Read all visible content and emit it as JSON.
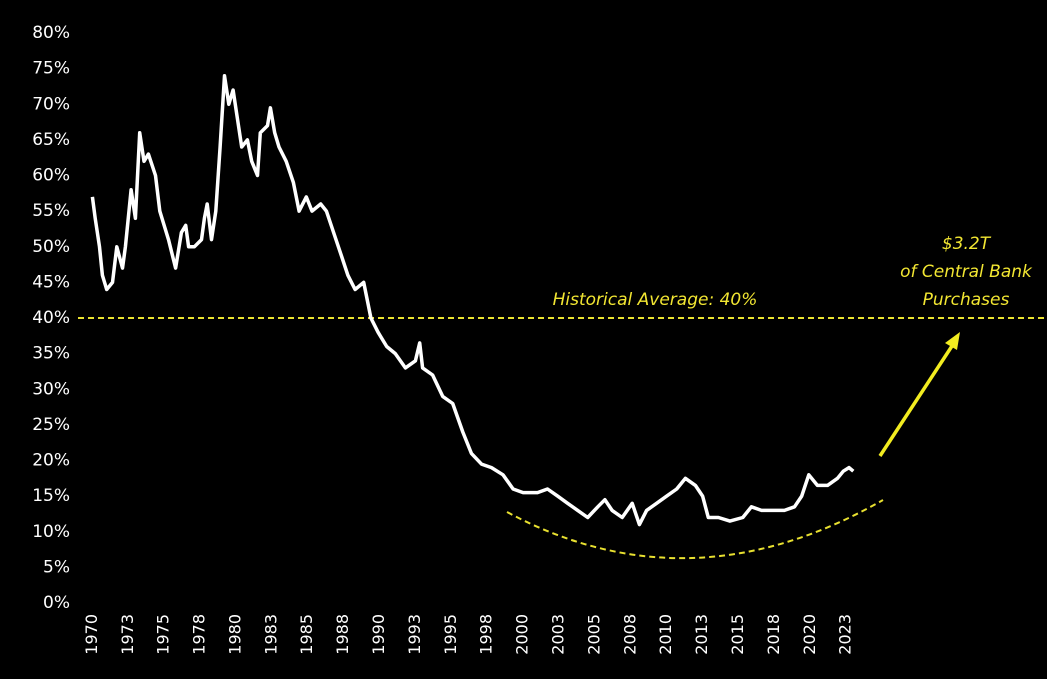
{
  "chart_data": {
    "type": "line",
    "color": "#ffffff",
    "x": [
      1970.0,
      1970.2,
      1970.5,
      1970.7,
      1971.0,
      1971.4,
      1971.7,
      1972.1,
      1972.3,
      1972.7,
      1973.0,
      1973.3,
      1973.6,
      1973.9,
      1974.4,
      1974.7,
      1975.3,
      1975.8,
      1976.2,
      1976.5,
      1976.7,
      1977.1,
      1977.6,
      1977.8,
      1978.0,
      1978.3,
      1978.6,
      1978.9,
      1979.2,
      1979.5,
      1979.8,
      1980.1,
      1980.4,
      1980.8,
      1981.1,
      1981.5,
      1981.7,
      1982.2,
      1982.4,
      1982.7,
      1983.0,
      1983.5,
      1984.0,
      1984.4,
      1984.9,
      1985.3,
      1985.9,
      1986.3,
      1986.8,
      1987.3,
      1987.8,
      1988.3,
      1988.9,
      1989.4,
      1989.9,
      1990.5,
      1991.1,
      1991.8,
      1992.5,
      1992.8,
      1993.0,
      1993.7,
      1994.4,
      1995.1,
      1995.8,
      1996.4,
      1997.1,
      1997.8,
      1998.6,
      1999.3,
      2000.0,
      2001.0,
      2001.7,
      2002.4,
      2003.1,
      2003.8,
      2004.5,
      2005.2,
      2005.7,
      2006.2,
      2006.9,
      2007.6,
      2008.1,
      2008.6,
      2009.3,
      2010.0,
      2010.7,
      2011.3,
      2012.0,
      2012.5,
      2012.9,
      2013.6,
      2014.4,
      2015.3,
      2015.9,
      2016.6,
      2017.3,
      2018.2,
      2018.9,
      2019.4,
      2019.9,
      2020.5,
      2021.2,
      2021.9,
      2022.3,
      2022.7,
      2023.0
    ],
    "values": [
      57,
      54,
      50,
      46,
      44,
      45,
      50,
      47,
      50,
      58,
      54,
      66,
      62,
      63,
      60,
      55,
      51,
      47,
      52,
      53,
      50,
      50,
      51,
      54,
      56,
      51,
      55,
      64,
      74,
      70,
      72,
      68,
      64,
      65,
      62,
      60,
      66,
      67,
      69.5,
      66,
      64,
      62,
      59,
      55,
      57,
      55,
      56,
      55,
      52,
      49,
      46,
      44,
      45,
      40,
      38,
      36,
      35,
      33,
      34,
      36.5,
      33,
      32,
      29,
      28,
      24,
      21,
      19.5,
      19,
      18,
      16,
      15.5,
      15.5,
      16,
      15,
      14,
      13,
      12,
      13.5,
      14.5,
      13,
      12,
      14,
      11,
      13,
      14,
      15,
      16,
      17.5,
      16.5,
      15,
      12,
      12,
      11.5,
      12,
      13.5,
      13,
      13,
      13,
      13.5,
      15,
      18,
      16.5,
      16.5,
      17.5,
      18.5,
      19,
      18.5
    ],
    "xlim": [
      1969,
      2036
    ],
    "xticks": [
      1970,
      {
        "value": 1972.5,
        "label": "1973"
      },
      1975,
      {
        "value": 1977.5,
        "label": "1978"
      },
      1980,
      {
        "value": 1982.5,
        "label": "1983"
      },
      1985,
      {
        "value": 1987.5,
        "label": "1988"
      },
      1990,
      {
        "value": 1992.5,
        "label": "1993"
      },
      1995,
      {
        "value": 1997.5,
        "label": "1998"
      },
      2000,
      {
        "value": 2002.5,
        "label": "2003"
      },
      2005,
      {
        "value": 2007.5,
        "label": "2008"
      },
      2010,
      {
        "value": 2012.5,
        "label": "2013"
      },
      2015,
      {
        "value": 2017.5,
        "label": "2018"
      },
      2020,
      {
        "value": 2022.5,
        "label": "2023"
      }
    ],
    "ylim": [
      0,
      80
    ],
    "yticks": [
      {
        "value": 0,
        "label": "0%"
      },
      {
        "value": 5,
        "label": "5%"
      },
      {
        "value": 10,
        "label": "10%"
      },
      {
        "value": 15,
        "label": "15%"
      },
      {
        "value": 20,
        "label": "20%"
      },
      {
        "value": 25,
        "label": "25%"
      },
      {
        "value": 30,
        "label": "30%"
      },
      {
        "value": 35,
        "label": "35%"
      },
      {
        "value": 40,
        "label": "40%"
      },
      {
        "value": 45,
        "label": "45%"
      },
      {
        "value": 50,
        "label": "50%"
      },
      {
        "value": 55,
        "label": "55%"
      },
      {
        "value": 60,
        "label": "60%"
      },
      {
        "value": 65,
        "label": "65%"
      },
      {
        "value": 70,
        "label": "70%"
      },
      {
        "value": 75,
        "label": "75%"
      },
      {
        "value": 80,
        "label": "80%"
      }
    ],
    "reference_line": {
      "value": 40,
      "label": "Historical Average: 40%",
      "color": "#e8e030"
    },
    "callout": [
      "$3.2T",
      "of Central Bank",
      "Purchases"
    ]
  }
}
